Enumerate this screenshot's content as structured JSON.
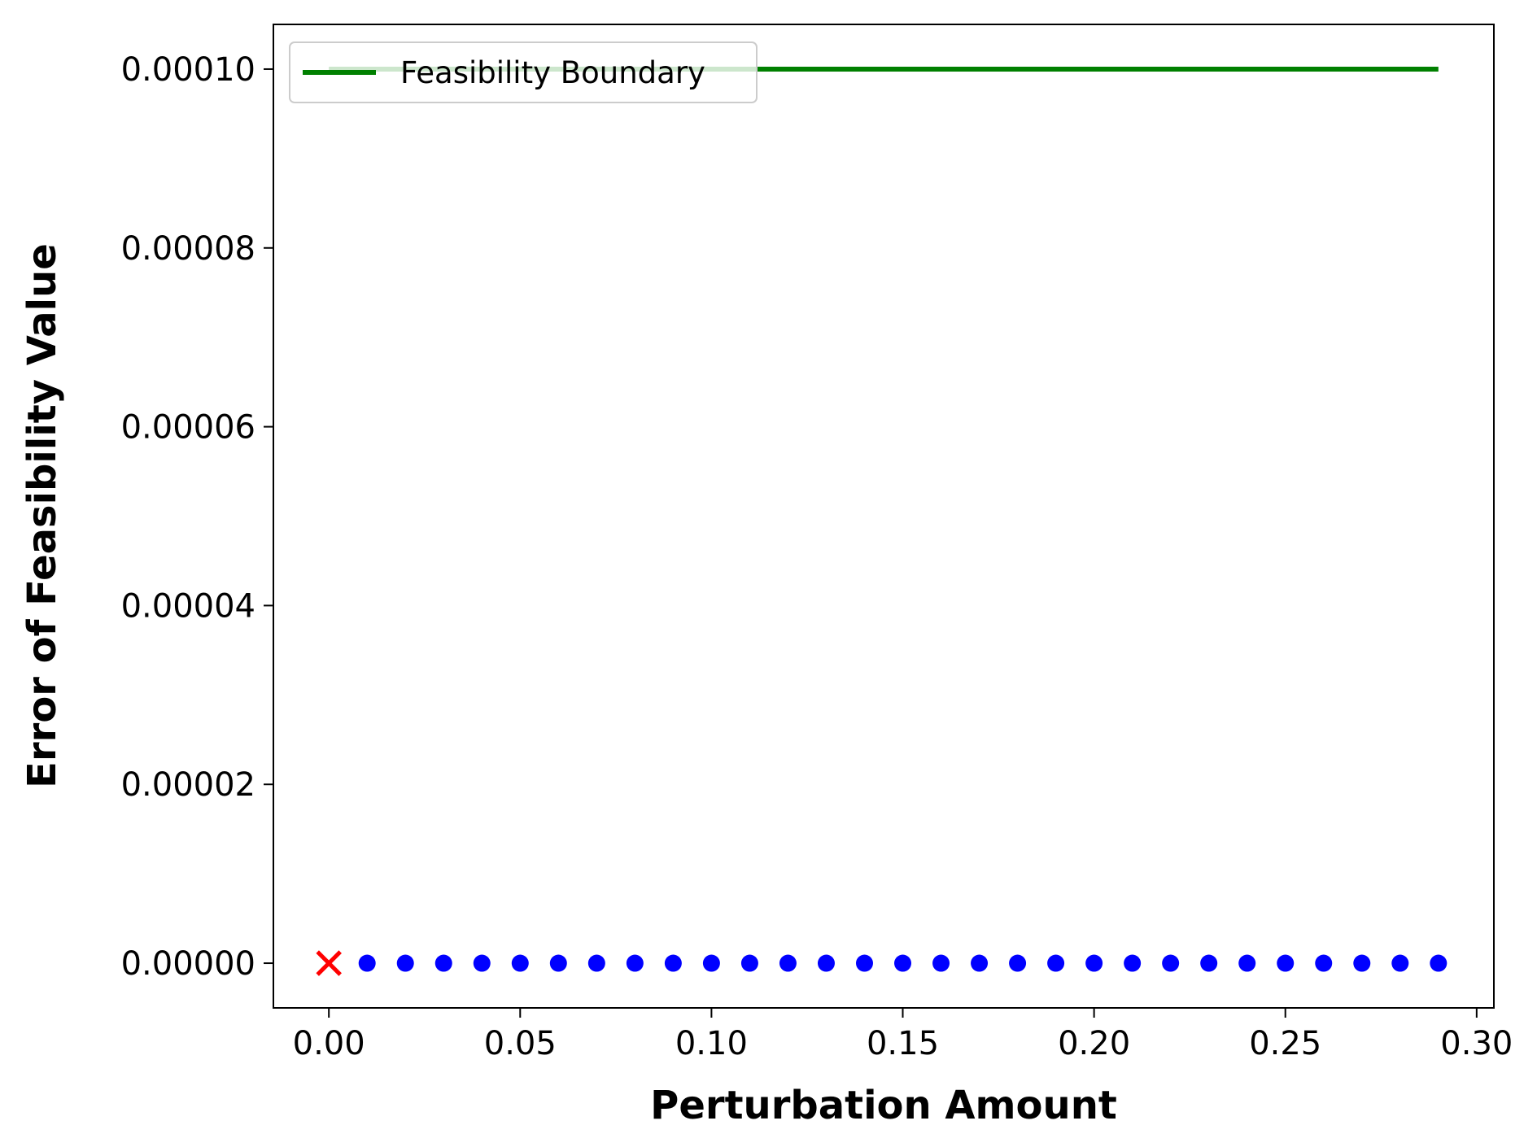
{
  "chart_data": {
    "type": "scatter",
    "title": "",
    "xlabel": "Perturbation Amount",
    "ylabel": "Error of Feasibility Value",
    "xlim": [
      -0.0145,
      0.3045
    ],
    "ylim": [
      -5e-06,
      0.000105
    ],
    "xticks": [
      0.0,
      0.05,
      0.1,
      0.15,
      0.2,
      0.25,
      0.3
    ],
    "xtick_labels": [
      "0.00",
      "0.05",
      "0.10",
      "0.15",
      "0.20",
      "0.25",
      "0.30"
    ],
    "yticks": [
      0.0,
      2e-05,
      4e-05,
      6e-05,
      8e-05,
      0.0001
    ],
    "ytick_labels": [
      "0.00000",
      "0.00002",
      "0.00004",
      "0.00006",
      "0.00008",
      "0.00010"
    ],
    "grid": false,
    "legend": {
      "position": "top-left",
      "entries": [
        {
          "label": "Feasibility Boundary",
          "color": "#008000",
          "marker": "line"
        }
      ]
    },
    "series": [
      {
        "name": "Feasibility Boundary",
        "kind": "line",
        "color": "#008000",
        "x": [
          0.0,
          0.29
        ],
        "y": [
          0.0001,
          0.0001
        ]
      },
      {
        "kind": "scatter",
        "marker": "x",
        "color": "#ff0000",
        "x": [
          0.0
        ],
        "y": [
          0.0
        ]
      },
      {
        "kind": "scatter",
        "marker": "circle",
        "color": "#0000ff",
        "x": [
          0.01,
          0.02,
          0.03,
          0.04,
          0.05,
          0.06,
          0.07,
          0.08,
          0.09,
          0.1,
          0.11,
          0.12,
          0.13,
          0.14,
          0.15,
          0.16,
          0.17,
          0.18,
          0.19,
          0.2,
          0.21,
          0.22,
          0.23,
          0.24,
          0.25,
          0.26,
          0.27,
          0.28,
          0.29
        ],
        "y": [
          0,
          0,
          0,
          0,
          0,
          0,
          0,
          0,
          0,
          0,
          0,
          0,
          0,
          0,
          0,
          0,
          0,
          0,
          0,
          0,
          0,
          0,
          0,
          0,
          0,
          0,
          0,
          0,
          0
        ]
      }
    ]
  }
}
